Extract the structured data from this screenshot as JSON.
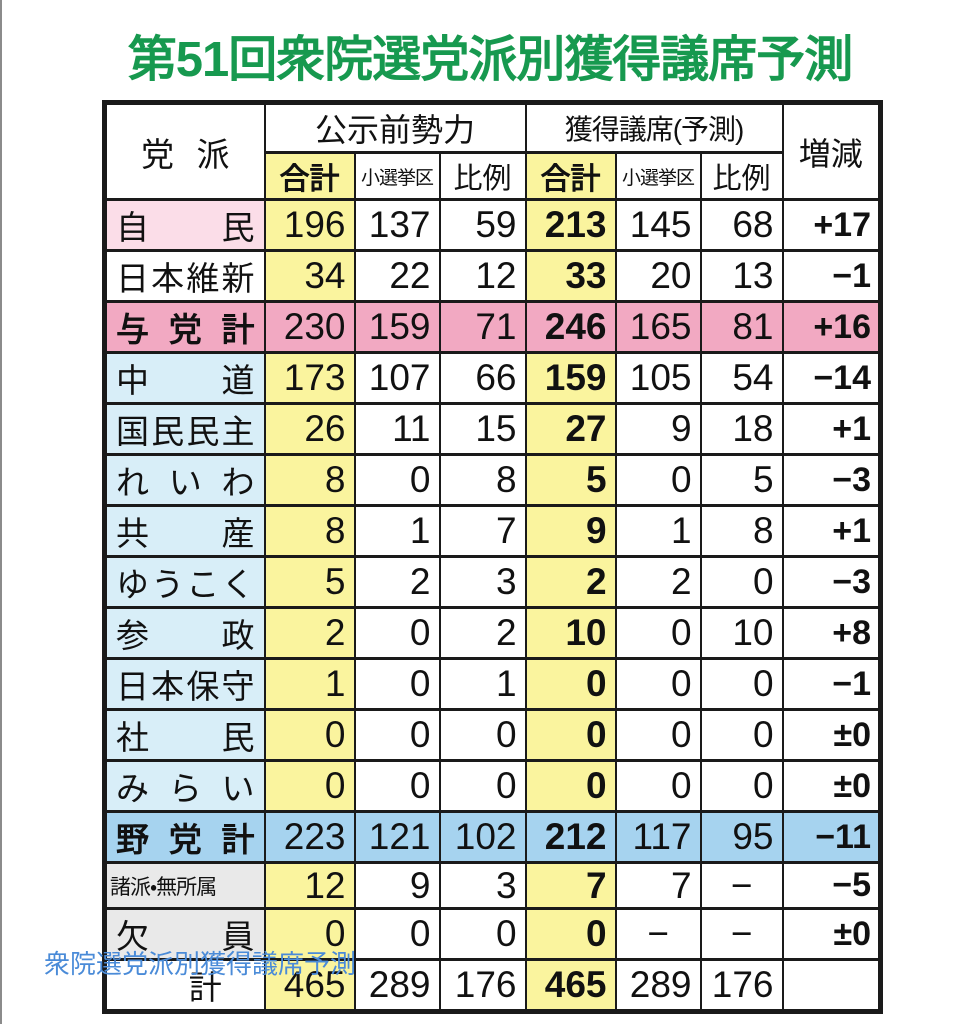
{
  "page_title": "第51回衆院選党派別獲得議席予測",
  "caption_link": "衆院選党派別獲得議席予測",
  "colors": {
    "title_green": "#17994f",
    "link_blue": "#4a8bd8",
    "total_column_yellow": "#faf49e",
    "ruling_name_pink": "#fbdde8",
    "ruling_total_pink": "#f2a9c2",
    "opposition_name_blue": "#d8eef8",
    "opposition_total_blue": "#a6d3ef",
    "misc_name_gray": "#e9e9e9",
    "border_black": "#1a1a1a"
  },
  "chart_data": {
    "type": "table",
    "title": "第51回衆院選党派別獲得議席予測",
    "header": {
      "party": "党派",
      "group_pre": "公示前勢力",
      "group_pred": "獲得議席(予測)",
      "change": "増減",
      "sub": [
        "合計",
        "小選挙区",
        "比例"
      ]
    },
    "rows": [
      {
        "name": "自民",
        "pre": [
          "196",
          "137",
          "59"
        ],
        "pred": [
          "213",
          "145",
          "68"
        ],
        "change": "+17"
      },
      {
        "name": "日本維新",
        "pre": [
          "34",
          "22",
          "12"
        ],
        "pred": [
          "33",
          "20",
          "13"
        ],
        "change": "−1"
      },
      {
        "name": "与党計",
        "pre": [
          "230",
          "159",
          "71"
        ],
        "pred": [
          "246",
          "165",
          "81"
        ],
        "change": "+16"
      },
      {
        "name": "中道",
        "pre": [
          "173",
          "107",
          "66"
        ],
        "pred": [
          "159",
          "105",
          "54"
        ],
        "change": "−14"
      },
      {
        "name": "国民民主",
        "pre": [
          "26",
          "11",
          "15"
        ],
        "pred": [
          "27",
          "9",
          "18"
        ],
        "change": "+1"
      },
      {
        "name": "れいわ",
        "pre": [
          "8",
          "0",
          "8"
        ],
        "pred": [
          "5",
          "0",
          "5"
        ],
        "change": "−3"
      },
      {
        "name": "共産",
        "pre": [
          "8",
          "1",
          "7"
        ],
        "pred": [
          "9",
          "1",
          "8"
        ],
        "change": "+1"
      },
      {
        "name": "ゆうこく",
        "pre": [
          "5",
          "2",
          "3"
        ],
        "pred": [
          "2",
          "2",
          "0"
        ],
        "change": "−3"
      },
      {
        "name": "参政",
        "pre": [
          "2",
          "0",
          "2"
        ],
        "pred": [
          "10",
          "0",
          "10"
        ],
        "change": "+8"
      },
      {
        "name": "日本保守",
        "pre": [
          "1",
          "0",
          "1"
        ],
        "pred": [
          "0",
          "0",
          "0"
        ],
        "change": "−1"
      },
      {
        "name": "社民",
        "pre": [
          "0",
          "0",
          "0"
        ],
        "pred": [
          "0",
          "0",
          "0"
        ],
        "change": "±0"
      },
      {
        "name": "みらい",
        "pre": [
          "0",
          "0",
          "0"
        ],
        "pred": [
          "0",
          "0",
          "0"
        ],
        "change": "±0"
      },
      {
        "name": "野党計",
        "pre": [
          "223",
          "121",
          "102"
        ],
        "pred": [
          "212",
          "117",
          "95"
        ],
        "change": "−11"
      },
      {
        "name": "諸派・無所属",
        "pre": [
          "12",
          "9",
          "3"
        ],
        "pred": [
          "7",
          "7",
          "−"
        ],
        "change": "−5"
      },
      {
        "name": "欠員",
        "pre": [
          "0",
          "0",
          "0"
        ],
        "pred": [
          "0",
          "−",
          "−"
        ],
        "change": "±0"
      },
      {
        "name": "計",
        "pre": [
          "465",
          "289",
          "176"
        ],
        "pred": [
          "465",
          "289",
          "176"
        ],
        "change": ""
      }
    ]
  }
}
